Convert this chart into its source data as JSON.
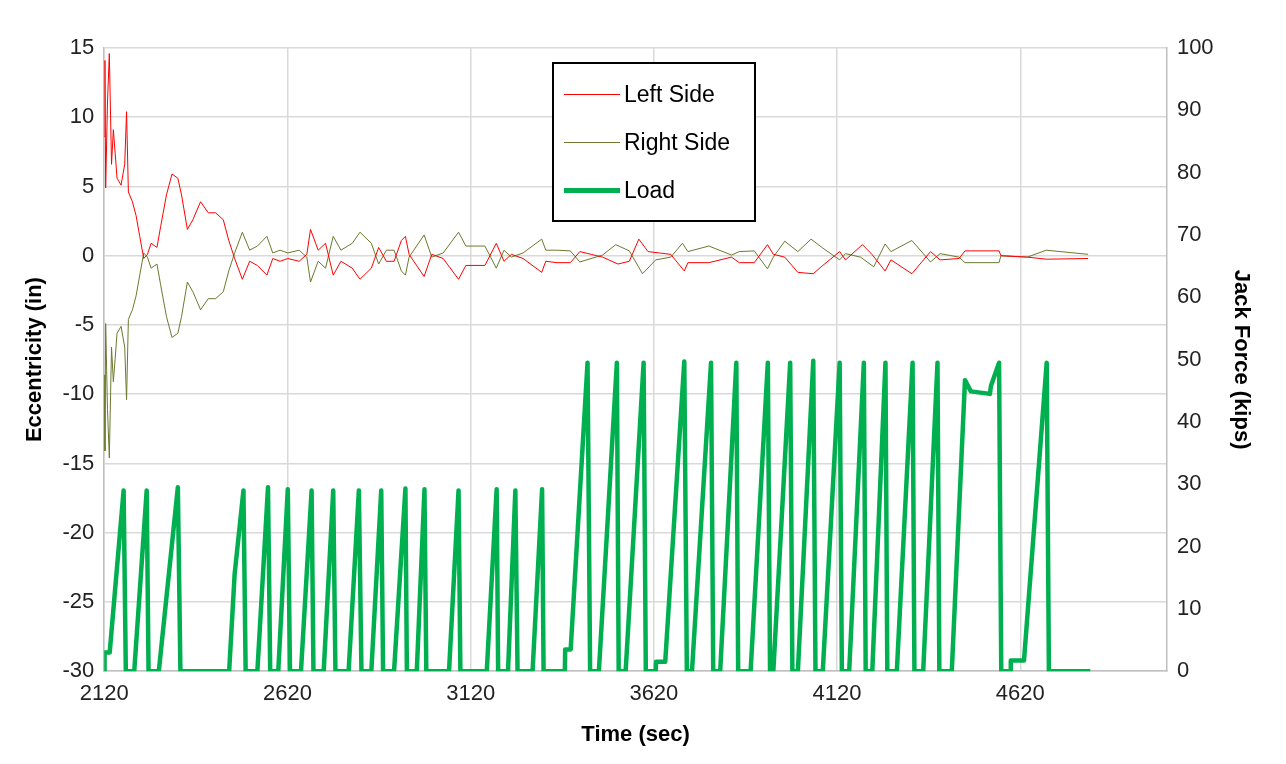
{
  "chart_data": {
    "type": "line",
    "xlabel": "Time (sec)",
    "ylabel": "Eccentricity (in)",
    "y2label": "Jack Force (kips)",
    "xlim": [
      2120,
      5020
    ],
    "xticks": [
      2120,
      2620,
      3120,
      3620,
      4120,
      4620
    ],
    "ylim": [
      -30,
      15
    ],
    "yticks": [
      -30,
      -25,
      -20,
      -15,
      -10,
      -5,
      0,
      5,
      10,
      15
    ],
    "y2lim": [
      0,
      100
    ],
    "y2ticks": [
      0,
      10,
      20,
      30,
      40,
      50,
      60,
      70,
      80,
      90,
      100
    ],
    "grid": true,
    "legend": "top",
    "marker": "none",
    "line_style": "solid",
    "series": [
      {
        "name": "Left Side",
        "color": "#ff0000",
        "x": [
          2120,
          2122,
          2124,
          2129,
          2134,
          2140,
          2145,
          2150,
          2155,
          2166,
          2176,
          2181,
          2186,
          2197,
          2207,
          2217,
          2228,
          2238,
          2248,
          2264,
          2274,
          2290,
          2305,
          2321,
          2331,
          2347,
          2362,
          2383,
          2404,
          2424,
          2445,
          2460,
          2476,
          2497,
          2517,
          2538,
          2564,
          2580,
          2600,
          2621,
          2652,
          2673,
          2683,
          2704,
          2724,
          2745,
          2766,
          2797,
          2818,
          2849,
          2869,
          2890,
          2911,
          2931,
          2942,
          2952,
          2993,
          3014,
          3045,
          3087,
          3107,
          3159,
          3190,
          3211,
          3231,
          3263,
          3314,
          3325,
          3356,
          3392,
          3418,
          3449,
          3480,
          3522,
          3553,
          3579,
          3604,
          3635,
          3666,
          3703,
          3713,
          3770,
          3832,
          3853,
          3894,
          3930,
          3946,
          3977,
          4013,
          4055,
          4081,
          4127,
          4143,
          4189,
          4215,
          4251,
          4267,
          4324,
          4375,
          4401,
          4453,
          4469,
          4562,
          4567,
          4639,
          4691,
          4805
        ],
        "values": [
          8.6,
          14.1,
          4.9,
          11.1,
          14.6,
          6.6,
          9.1,
          7.4,
          5.6,
          5.1,
          6.6,
          10.4,
          4.6,
          3.9,
          2.9,
          1.4,
          -0.2,
          0.1,
          0.9,
          0.6,
          2.1,
          4.4,
          5.9,
          5.6,
          4.4,
          1.9,
          2.6,
          3.9,
          3.1,
          3.1,
          2.6,
          1.1,
          -0.2,
          -1.7,
          -0.4,
          -0.7,
          -1.4,
          -0.2,
          -0.4,
          -0.2,
          -0.4,
          0.1,
          1.9,
          0.4,
          0.9,
          -1.4,
          -0.4,
          -0.9,
          -1.7,
          -0.9,
          0.6,
          -0.4,
          -0.4,
          1.1,
          1.4,
          0.1,
          -1.5,
          0.1,
          -0.2,
          -1.7,
          -0.7,
          -0.7,
          0.9,
          -0.4,
          0.1,
          -0.2,
          -1.2,
          -0.4,
          -0.5,
          -0.5,
          0.3,
          0.1,
          -0.1,
          -0.6,
          -0.4,
          1.2,
          0.3,
          0.2,
          0.1,
          -1.1,
          -0.5,
          -0.5,
          -0.1,
          -0.5,
          -0.5,
          0.8,
          0.1,
          -0.1,
          -1.2,
          -1.3,
          -0.7,
          0.3,
          -0.3,
          0.8,
          0.1,
          -1.1,
          -0.3,
          -1.3,
          0.3,
          -0.3,
          -0.2,
          0.35,
          0.35,
          0,
          -0.1,
          -0.25,
          -0.2
        ]
      },
      {
        "name": "Right Side",
        "color": "#6b7a2e",
        "x": [
          2120,
          2122,
          2124,
          2129,
          2134,
          2140,
          2145,
          2150,
          2155,
          2166,
          2176,
          2181,
          2186,
          2197,
          2207,
          2217,
          2228,
          2238,
          2248,
          2264,
          2274,
          2290,
          2305,
          2321,
          2331,
          2347,
          2362,
          2383,
          2404,
          2424,
          2445,
          2460,
          2476,
          2497,
          2517,
          2538,
          2564,
          2580,
          2600,
          2621,
          2652,
          2673,
          2683,
          2704,
          2724,
          2745,
          2766,
          2797,
          2818,
          2849,
          2869,
          2890,
          2911,
          2931,
          2942,
          2952,
          2993,
          3014,
          3045,
          3087,
          3107,
          3159,
          3190,
          3211,
          3231,
          3263,
          3314,
          3325,
          3356,
          3392,
          3418,
          3480,
          3516,
          3553,
          3589,
          3625,
          3666,
          3698,
          3713,
          3770,
          3832,
          3853,
          3894,
          3930,
          3946,
          3977,
          4013,
          4049,
          4081,
          4127,
          4143,
          4184,
          4220,
          4251,
          4267,
          4324,
          4375,
          4401,
          4453,
          4469,
          4562,
          4567,
          4639,
          4691,
          4805
        ],
        "values": [
          -8.6,
          -14.1,
          -4.9,
          -11.1,
          -14.6,
          -6.6,
          -9.1,
          -7.4,
          -5.6,
          -5.1,
          -6.6,
          -10.4,
          -4.6,
          -3.9,
          -2.9,
          -1.4,
          0.2,
          -0.1,
          -0.9,
          -0.6,
          -2.1,
          -4.4,
          -5.9,
          -5.6,
          -4.4,
          -1.9,
          -2.6,
          -3.9,
          -3.1,
          -3.1,
          -2.6,
          -1.1,
          0.2,
          1.7,
          0.4,
          0.7,
          1.4,
          0.2,
          0.4,
          0.2,
          0.4,
          -0.1,
          -1.9,
          -0.4,
          -0.9,
          1.4,
          0.4,
          0.9,
          1.7,
          0.9,
          -0.6,
          0.4,
          0.4,
          -1.1,
          -1.4,
          -0.1,
          1.5,
          -0.1,
          0.2,
          1.7,
          0.7,
          0.7,
          -0.9,
          0.4,
          -0.1,
          0.2,
          1.2,
          0.4,
          0.4,
          0.35,
          -0.45,
          0.05,
          0.8,
          0.35,
          -1.3,
          -0.3,
          -0.1,
          0.9,
          0.3,
          0.7,
          0.05,
          0.3,
          0.35,
          -0.95,
          -0.1,
          1.05,
          0.3,
          1.2,
          0.55,
          -0.3,
          0.15,
          -0.1,
          -0.8,
          0.85,
          0.3,
          1.1,
          -0.45,
          0.15,
          -0.1,
          -0.5,
          -0.5,
          0,
          -0.1,
          0.4,
          0.1
        ]
      },
      {
        "name": "Load",
        "color": "#00b050",
        "axis": "y2",
        "x": [
          2120,
          2121,
          2135,
          2173,
          2179,
          2202,
          2236,
          2241,
          2269,
          2321,
          2328,
          2461,
          2476,
          2500,
          2506,
          2538,
          2567,
          2573,
          2595,
          2621,
          2627,
          2657,
          2686,
          2691,
          2719,
          2745,
          2751,
          2787,
          2815,
          2822,
          2849,
          2876,
          2881,
          2911,
          2942,
          2946,
          2973,
          2994,
          2999,
          3061,
          3087,
          3092,
          3164,
          3191,
          3195,
          3222,
          3242,
          3248,
          3289,
          3315,
          3319,
          3377,
          3378,
          3393,
          3439,
          3446,
          3470,
          3519,
          3524,
          3543,
          3592,
          3598,
          3625,
          3626,
          3651,
          3703,
          3710,
          3724,
          3776,
          3782,
          3801,
          3845,
          3850,
          3884,
          3931,
          3937,
          3946,
          3992,
          3998,
          4013,
          4055,
          4061,
          4081,
          4127,
          4133,
          4153,
          4193,
          4198,
          4216,
          4252,
          4257,
          4283,
          4326,
          4331,
          4355,
          4394,
          4399,
          4433,
          4469,
          4485,
          4537,
          4540,
          4562,
          4568,
          4593,
          4594,
          4630,
          4692,
          4698,
          4811
        ],
        "values": [
          0,
          3,
          3,
          29,
          0,
          0,
          29,
          0,
          0,
          29.5,
          0,
          0,
          15.6,
          29,
          0,
          0,
          29.5,
          0,
          0,
          29.2,
          0,
          0,
          29,
          0,
          0,
          29,
          0,
          0,
          29,
          0,
          0,
          29,
          0,
          0,
          29.3,
          0,
          0,
          29.2,
          0,
          0,
          29,
          0,
          0,
          29.2,
          0,
          0,
          29,
          0,
          0,
          29.2,
          0,
          0,
          3.5,
          3.5,
          49.5,
          0,
          0,
          49.5,
          0,
          0,
          49.5,
          0,
          0,
          1.5,
          1.5,
          49.7,
          0,
          0,
          49.5,
          0,
          0,
          49.5,
          0,
          0,
          49.5,
          0,
          0,
          49.5,
          0,
          0,
          49.8,
          0,
          0,
          49.5,
          0,
          0,
          49.5,
          0,
          0,
          49.5,
          0,
          0,
          49.5,
          0,
          0,
          49.5,
          0,
          0,
          46.7,
          44.9,
          44.5,
          45.8,
          49.5,
          0,
          0,
          1.7,
          1.7,
          49.5,
          0,
          0
        ]
      }
    ]
  }
}
